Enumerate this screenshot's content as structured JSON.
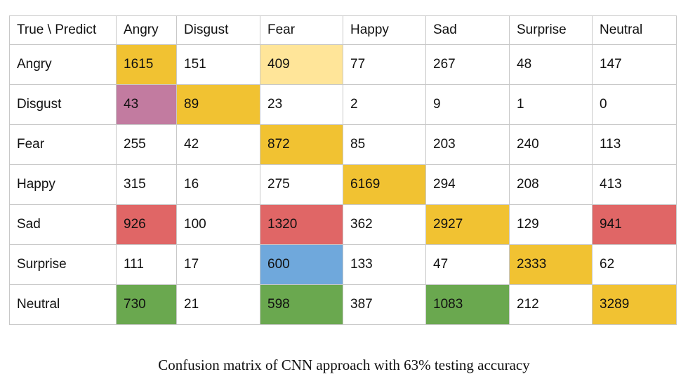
{
  "chart_data": {
    "type": "table",
    "corner_label": "True \\ Predict",
    "columns": [
      "Angry",
      "Disgust",
      "Fear",
      "Happy",
      "Sad",
      "Surprise",
      "Neutral"
    ],
    "rows": [
      "Angry",
      "Disgust",
      "Fear",
      "Happy",
      "Sad",
      "Surprise",
      "Neutral"
    ],
    "values": [
      [
        1615,
        151,
        409,
        77,
        267,
        48,
        147
      ],
      [
        43,
        89,
        23,
        2,
        9,
        1,
        0
      ],
      [
        255,
        42,
        872,
        85,
        203,
        240,
        113
      ],
      [
        315,
        16,
        275,
        6169,
        294,
        208,
        413
      ],
      [
        926,
        100,
        1320,
        362,
        2927,
        129,
        941
      ],
      [
        111,
        17,
        600,
        133,
        47,
        2333,
        62
      ],
      [
        730,
        21,
        598,
        387,
        1083,
        212,
        3289
      ]
    ],
    "highlights": [
      [
        "#f1c232",
        null,
        "#ffe599",
        null,
        null,
        null,
        null
      ],
      [
        "#c27ba0",
        "#f1c232",
        null,
        null,
        null,
        null,
        null
      ],
      [
        null,
        null,
        "#f1c232",
        null,
        null,
        null,
        null
      ],
      [
        null,
        null,
        null,
        "#f1c232",
        null,
        null,
        null
      ],
      [
        "#e06666",
        null,
        "#e06666",
        null,
        "#f1c232",
        null,
        "#e06666"
      ],
      [
        null,
        null,
        "#6fa8dc",
        null,
        null,
        "#f1c232",
        null
      ],
      [
        "#6aa84f",
        null,
        "#6aa84f",
        null,
        "#6aa84f",
        null,
        "#f1c232"
      ]
    ],
    "caption": "Confusion matrix of CNN approach with 63% testing accuracy"
  }
}
